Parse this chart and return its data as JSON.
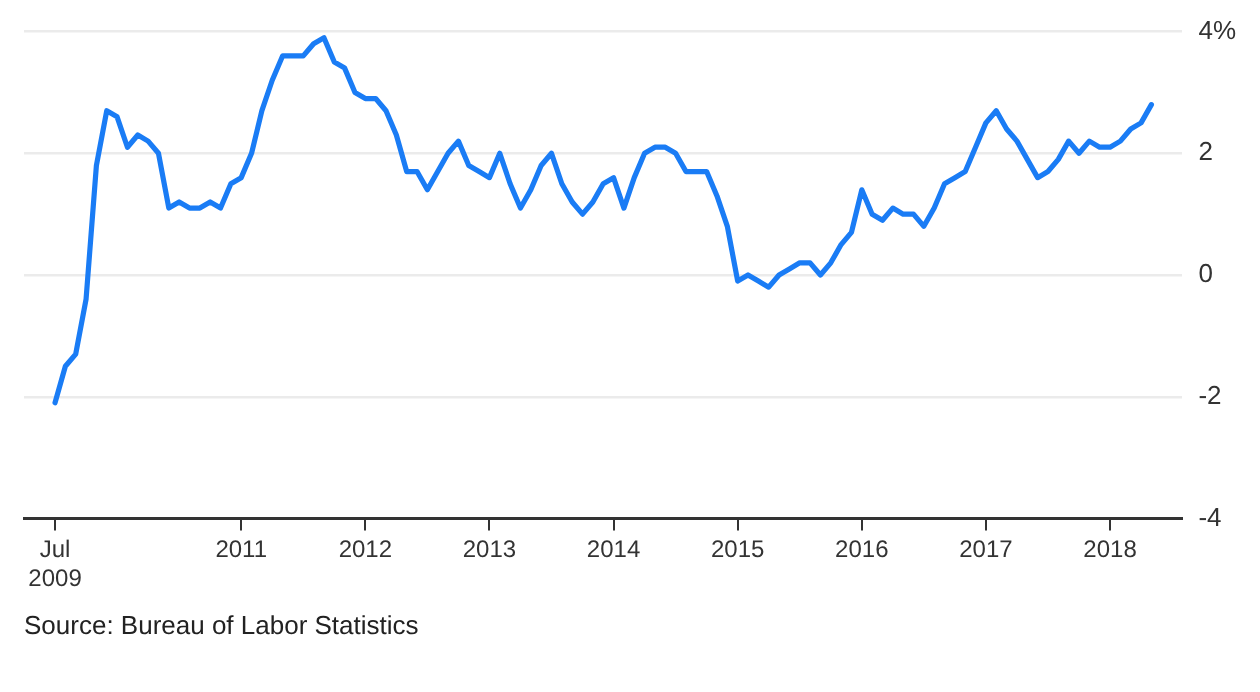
{
  "chart_data": {
    "type": "line",
    "x": [
      "2009-07",
      "2009-08",
      "2009-09",
      "2009-10",
      "2009-11",
      "2009-12",
      "2010-01",
      "2010-02",
      "2010-03",
      "2010-04",
      "2010-05",
      "2010-06",
      "2010-07",
      "2010-08",
      "2010-09",
      "2010-10",
      "2010-11",
      "2010-12",
      "2011-01",
      "2011-02",
      "2011-03",
      "2011-04",
      "2011-05",
      "2011-06",
      "2011-07",
      "2011-08",
      "2011-09",
      "2011-10",
      "2011-11",
      "2011-12",
      "2012-01",
      "2012-02",
      "2012-03",
      "2012-04",
      "2012-05",
      "2012-06",
      "2012-07",
      "2012-08",
      "2012-09",
      "2012-10",
      "2012-11",
      "2012-12",
      "2013-01",
      "2013-02",
      "2013-03",
      "2013-04",
      "2013-05",
      "2013-06",
      "2013-07",
      "2013-08",
      "2013-09",
      "2013-10",
      "2013-11",
      "2013-12",
      "2014-01",
      "2014-02",
      "2014-03",
      "2014-04",
      "2014-05",
      "2014-06",
      "2014-07",
      "2014-08",
      "2014-09",
      "2014-10",
      "2014-11",
      "2014-12",
      "2015-01",
      "2015-02",
      "2015-03",
      "2015-04",
      "2015-05",
      "2015-06",
      "2015-07",
      "2015-08",
      "2015-09",
      "2015-10",
      "2015-11",
      "2015-12",
      "2016-01",
      "2016-02",
      "2016-03",
      "2016-04",
      "2016-05",
      "2016-06",
      "2016-07",
      "2016-08",
      "2016-09",
      "2016-10",
      "2016-11",
      "2016-12",
      "2017-01",
      "2017-02",
      "2017-03",
      "2017-04",
      "2017-05",
      "2017-06",
      "2017-07",
      "2017-08",
      "2017-09",
      "2017-10",
      "2017-11",
      "2017-12",
      "2018-01",
      "2018-02",
      "2018-03",
      "2018-04",
      "2018-05"
    ],
    "series": [
      {
        "color": "#1a7cf5",
        "values": [
          -2.1,
          -1.5,
          -1.3,
          -0.4,
          1.8,
          2.7,
          2.6,
          2.1,
          2.3,
          2.2,
          2.0,
          1.1,
          1.2,
          1.1,
          1.1,
          1.2,
          1.1,
          1.5,
          1.6,
          2.0,
          2.7,
          3.2,
          3.6,
          3.6,
          3.6,
          3.8,
          3.9,
          3.5,
          3.4,
          3.0,
          2.9,
          2.9,
          2.7,
          2.3,
          1.7,
          1.7,
          1.4,
          1.7,
          2.0,
          2.2,
          1.8,
          1.7,
          1.6,
          2.0,
          1.5,
          1.1,
          1.4,
          1.8,
          2.0,
          1.5,
          1.2,
          1.0,
          1.2,
          1.5,
          1.6,
          1.1,
          1.6,
          2.0,
          2.1,
          2.1,
          2.0,
          1.7,
          1.7,
          1.7,
          1.3,
          0.8,
          -0.1,
          0.0,
          -0.1,
          -0.2,
          0.0,
          0.1,
          0.2,
          0.2,
          0.0,
          0.2,
          0.5,
          0.7,
          1.4,
          1.0,
          0.9,
          1.1,
          1.0,
          1.0,
          0.8,
          1.1,
          1.5,
          1.6,
          1.7,
          2.1,
          2.5,
          2.7,
          2.4,
          2.2,
          1.9,
          1.6,
          1.7,
          1.9,
          2.2,
          2.0,
          2.2,
          2.1,
          2.1,
          2.2,
          2.4,
          2.5,
          2.8
        ]
      }
    ],
    "xlim": [
      "2009-04",
      "2018-08"
    ],
    "xticks": [
      {
        "value": "2009-07",
        "label": "Jul\n2009"
      },
      {
        "value": "2011",
        "label": "2011"
      },
      {
        "value": "2012",
        "label": "2012"
      },
      {
        "value": "2013",
        "label": "2013"
      },
      {
        "value": "2014",
        "label": "2014"
      },
      {
        "value": "2015",
        "label": "2015"
      },
      {
        "value": "2016",
        "label": "2016"
      },
      {
        "value": "2017",
        "label": "2017"
      },
      {
        "value": "2018",
        "label": "2018"
      }
    ],
    "ylim": [
      -4,
      4
    ],
    "yticks": [
      {
        "value": 4,
        "label": "4%"
      },
      {
        "value": 2,
        "label": "2"
      },
      {
        "value": 0,
        "label": "0"
      },
      {
        "value": -2,
        "label": "-2"
      },
      {
        "value": -4,
        "label": "-4"
      }
    ],
    "grid": "y",
    "marker": "none",
    "line_style": "solid",
    "legend": false,
    "annotations": [
      "Source: Bureau of Labor Statistics"
    ]
  }
}
